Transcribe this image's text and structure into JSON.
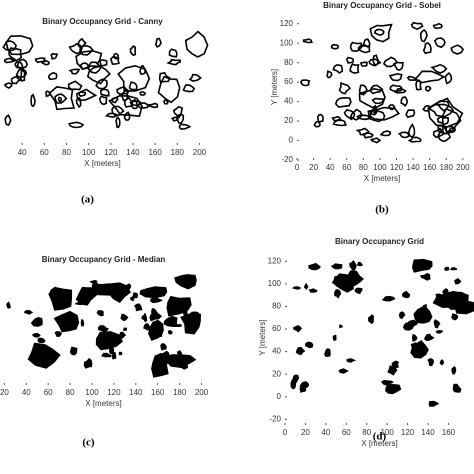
{
  "chart_data": [
    {
      "type": "occupancy_grid",
      "style": "edges",
      "title": "Binary Occupancy Grid - Canny",
      "xlabel": "X [meters]",
      "caption": "(a)",
      "xlim": [
        20,
        205
      ],
      "xticks": [
        40,
        60,
        80,
        100,
        120,
        140,
        160,
        180,
        200
      ]
    },
    {
      "type": "occupancy_grid",
      "style": "edges",
      "title": "Binary Occupancy Grid - Sobel",
      "xlabel": "X [meters]",
      "ylabel": "Y [meters]",
      "caption": "(b)",
      "xlim": [
        0,
        205
      ],
      "ylim": [
        -20,
        130
      ],
      "xticks": [
        0,
        20,
        40,
        60,
        80,
        100,
        120,
        140,
        160,
        180,
        200
      ],
      "yticks": [
        -20,
        0,
        20,
        40,
        60,
        80,
        100,
        120
      ]
    },
    {
      "type": "occupancy_grid",
      "style": "filled",
      "title": "Binary Occupancy Grid - Median",
      "xlabel": "X [meters]",
      "caption": "(c)",
      "xlim": [
        16,
        205
      ],
      "xticks": [
        20,
        40,
        60,
        80,
        100,
        120,
        140,
        160,
        180,
        200
      ]
    },
    {
      "type": "occupancy_grid",
      "style": "filled",
      "title": "Binary Occupancy Grid",
      "xlabel": "X [meters]",
      "ylabel": "Y [meters]",
      "caption": "(d)",
      "xlim": [
        0,
        185
      ],
      "ylim": [
        -25,
        130
      ],
      "xticks": [
        0,
        20,
        40,
        60,
        80,
        100,
        120,
        140,
        160
      ],
      "yticks": [
        -20,
        0,
        20,
        40,
        60,
        80,
        100,
        120
      ]
    }
  ]
}
